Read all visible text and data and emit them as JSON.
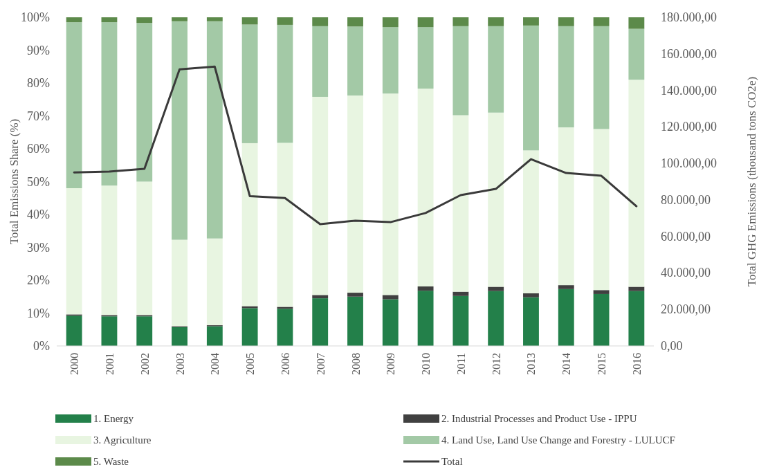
{
  "chart_data": {
    "type": "bar",
    "stacked": true,
    "ylabel": "Total Emissions Share (%)",
    "y2label": "Total GHG Emissions (thousand tons CO2e)",
    "categories": [
      "2000",
      "2001",
      "2002",
      "2003",
      "2004",
      "2005",
      "2006",
      "2007",
      "2008",
      "2009",
      "2010",
      "2011",
      "2012",
      "2013",
      "2014",
      "2015",
      "2016"
    ],
    "ylim": [
      0,
      100
    ],
    "yticks": [
      {
        "value": 0,
        "label": "0%"
      },
      {
        "value": 10,
        "label": "10%"
      },
      {
        "value": 20,
        "label": "20%"
      },
      {
        "value": 30,
        "label": "30%"
      },
      {
        "value": 40,
        "label": "40%"
      },
      {
        "value": 50,
        "label": "50%"
      },
      {
        "value": 60,
        "label": "60%"
      },
      {
        "value": 70,
        "label": "70%"
      },
      {
        "value": 80,
        "label": "80%"
      },
      {
        "value": 90,
        "label": "90%"
      },
      {
        "value": 100,
        "label": "100%"
      }
    ],
    "y2lim": [
      0,
      180000
    ],
    "y2ticks": [
      {
        "value": 0,
        "label": "0,00"
      },
      {
        "value": 20000,
        "label": "20.000,00"
      },
      {
        "value": 40000,
        "label": "40.000,00"
      },
      {
        "value": 60000,
        "label": "60.000,00"
      },
      {
        "value": 80000,
        "label": "80.000,00"
      },
      {
        "value": 100000,
        "label": "100.000,00"
      },
      {
        "value": 120000,
        "label": "120.000,00"
      },
      {
        "value": 140000,
        "label": "140.000,00"
      },
      {
        "value": 160000,
        "label": "160.000,00"
      },
      {
        "value": 180000,
        "label": "180.000,00"
      }
    ],
    "legend": "bottom",
    "series": [
      {
        "name": "1. Energy",
        "color": "#23804a",
        "values": [
          9.2,
          9.0,
          9.0,
          5.7,
          6.0,
          11.5,
          11.3,
          14.5,
          15.0,
          14.2,
          16.8,
          15.2,
          16.7,
          14.8,
          17.3,
          15.8,
          16.7
        ]
      },
      {
        "name": "2. Industrial Processes and Product Use - IPPU",
        "color": "#404040",
        "values": [
          0.4,
          0.4,
          0.4,
          0.3,
          0.3,
          0.6,
          0.6,
          1.0,
          1.2,
          1.3,
          1.3,
          1.3,
          1.3,
          1.2,
          1.2,
          1.2,
          1.3
        ]
      },
      {
        "name": "3. Agriculture",
        "color": "#e8f5e1",
        "values": [
          38.4,
          39.4,
          40.6,
          26.3,
          26.4,
          49.6,
          49.9,
          60.3,
          60.0,
          61.3,
          60.2,
          53.7,
          53.0,
          43.5,
          48.0,
          49.0,
          63.0
        ]
      },
      {
        "name": "4. Land Use, Land Use Change and Forestry - LULUCF",
        "color": "#a3c9a6",
        "values": [
          50.5,
          49.7,
          48.3,
          66.5,
          66.1,
          36.1,
          35.9,
          21.5,
          21.0,
          20.2,
          18.7,
          27.1,
          26.3,
          38.0,
          30.8,
          31.3,
          15.5
        ]
      },
      {
        "name": "5. Waste",
        "color": "#5c8a4a",
        "values": [
          1.5,
          1.5,
          1.7,
          1.2,
          1.2,
          2.2,
          2.3,
          2.7,
          2.8,
          3.0,
          3.0,
          2.7,
          2.7,
          2.5,
          2.7,
          2.7,
          3.5
        ]
      },
      {
        "name": "Total",
        "type": "line",
        "axis": "y2",
        "color": "#3a3a3a",
        "values": [
          95000,
          95500,
          97000,
          151500,
          153000,
          82000,
          81000,
          66700,
          68600,
          67800,
          72800,
          82600,
          86000,
          102300,
          94700,
          93200,
          76500
        ]
      }
    ]
  }
}
